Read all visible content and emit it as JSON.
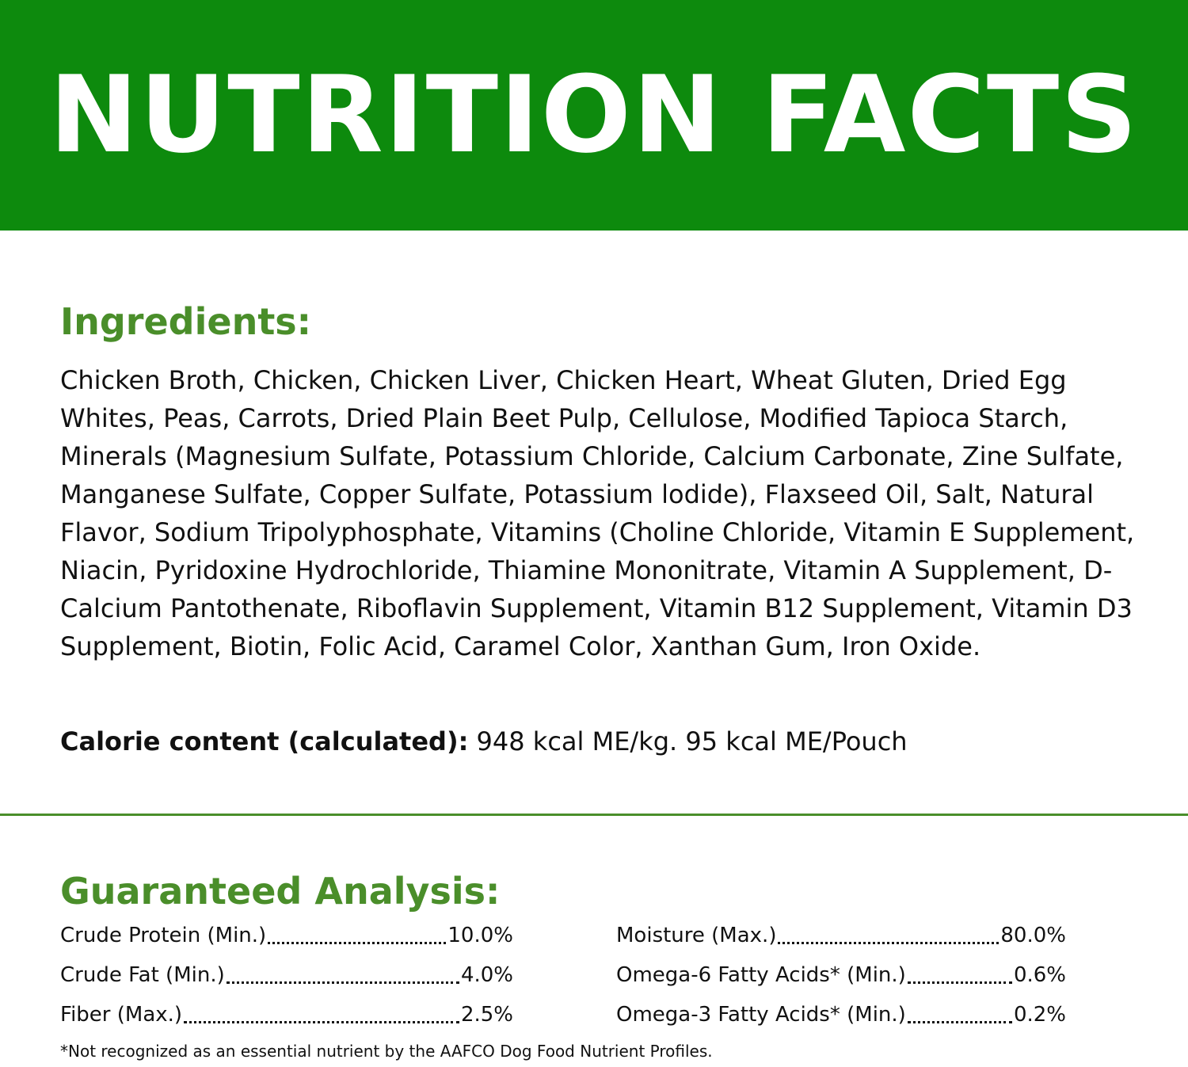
{
  "header": {
    "title": "NUTRITION FACTS",
    "background_color": "#0d8a0d"
  },
  "ingredients": {
    "heading": "Ingredients:",
    "text": "Chicken Broth, Chicken, Chicken Liver, Chicken Heart, Wheat Gluten, Dried Egg Whites, Peas, Carrots, Dried Plain Beet Pulp, Cellulose, Modified Tapioca Starch, Minerals (Magnesium Sulfate, Potassium Chloride, Calcium Carbonate, Zine Sulfate, Manganese Sulfate, Copper Sulfate, Potassium lodide), Flaxseed Oil, Salt, Natural Flavor, Sodium Tripolyphosphate, Vitamins (Choline Chloride, Vitamin E Supplement, Niacin, Pyridoxine Hydrochloride, Thiamine Mononitrate, Vitamin A Supplement, D-Calcium Pantothenate, Riboflavin Supplement, Vitamin B12 Supplement, Vitamin D3 Supplement, Biotin, Folic Acid, Caramel Color, Xanthan Gum, Iron Oxide."
  },
  "calorie": {
    "label": "Calorie content (calculated):",
    "value": "948 kcal ME/kg. 95 kcal ME/Pouch"
  },
  "analysis": {
    "heading": "Guaranteed Analysis:",
    "left": [
      {
        "name": "Crude Protein (Min.)",
        "value": "10.0%"
      },
      {
        "name": "Crude Fat (Min.)",
        "value": "4.0%"
      },
      {
        "name": "Fiber (Max.)",
        "value": "2.5%"
      }
    ],
    "right": [
      {
        "name": "Moisture (Max.)",
        "value": "80.0%"
      },
      {
        "name": "Omega-6 Fatty Acids* (Min.)",
        "value": "0.6%"
      },
      {
        "name": "Omega-3 Fatty Acids* (Min.)",
        "value": "0.2%"
      }
    ]
  },
  "footnote": "*Not recognized as an essential nutrient by the AAFCO Dog Food Nutrient Profiles.",
  "colors": {
    "accent_green": "#4a8e2a",
    "text": "#111111"
  }
}
